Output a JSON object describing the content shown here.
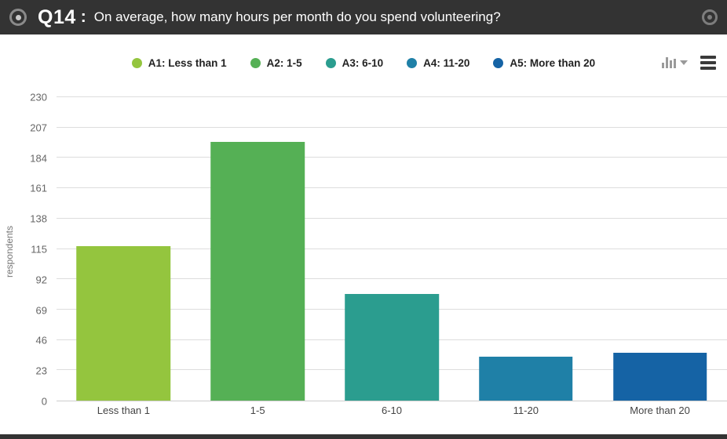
{
  "header": {
    "question_number": "Q14",
    "separator": ":",
    "question_text": "On average, how many hours per month do you spend volunteering?"
  },
  "icons": {
    "left": "record-circle-icon",
    "right": "target-circle-icon",
    "chart_type": "bar-chart-icon",
    "menu": "hamburger-icon"
  },
  "legend": {
    "items": [
      {
        "label": "A1: Less than 1",
        "color": "#94c53e"
      },
      {
        "label": "A2: 1-5",
        "color": "#55b055"
      },
      {
        "label": "A3: 6-10",
        "color": "#2b9d8f"
      },
      {
        "label": "A4: 11-20",
        "color": "#1f80a7"
      },
      {
        "label": "A5: More than 20",
        "color": "#1563a5"
      }
    ]
  },
  "chart_data": {
    "type": "bar",
    "title": "Q14: On average, how many hours per month do you spend volunteering?",
    "categories": [
      "Less than 1",
      "1-5",
      "6-10",
      "11-20",
      "More than 20"
    ],
    "values": [
      117,
      196,
      81,
      33,
      36
    ],
    "colors": [
      "#94c53e",
      "#55b055",
      "#2b9d8f",
      "#1f80a7",
      "#1563a5"
    ],
    "xlabel": "",
    "ylabel": "respondents",
    "ylim": [
      0,
      230
    ],
    "yticks": [
      0,
      23,
      46,
      69,
      92,
      115,
      138,
      161,
      184,
      207,
      230
    ],
    "grid": true,
    "legend_position": "top"
  }
}
